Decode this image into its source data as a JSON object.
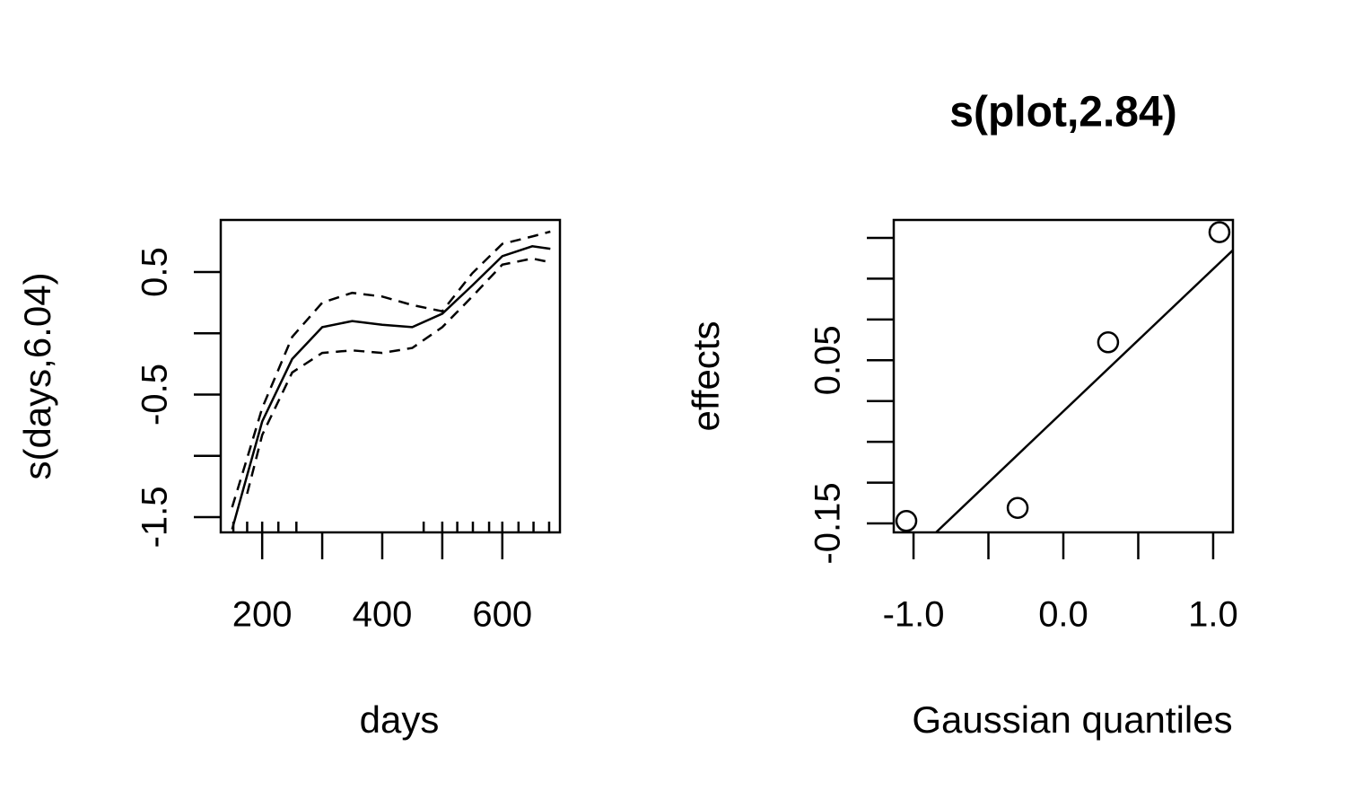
{
  "chart_data": [
    {
      "type": "line",
      "xlabel": "days",
      "ylabel": "s(days,6.04)",
      "xlim": [
        131,
        696
      ],
      "ylim": [
        -1.625,
        0.925
      ],
      "xticks": [
        200,
        {
          "value": 300,
          "label": null
        },
        400,
        {
          "value": 500,
          "label": null
        },
        600
      ],
      "yticks": [
        -1.5,
        {
          "value": -1,
          "label": null
        },
        -0.5,
        {
          "value": 0,
          "label": null
        },
        0.5
      ],
      "x": [
        150,
        175,
        200,
        250,
        300,
        350,
        400,
        450,
        500,
        550,
        600,
        650,
        680
      ],
      "series": [
        {
          "style": "solid",
          "color": "#000000",
          "values": [
            -1.6,
            -1.16,
            -0.72,
            -0.21,
            0.05,
            0.1,
            0.07,
            0.05,
            0.16,
            0.39,
            0.63,
            0.71,
            0.69
          ]
        },
        {
          "style": "dashed",
          "color": "#000000",
          "values": [
            -1.42,
            -1.02,
            -0.61,
            -0.03,
            0.25,
            0.33,
            0.3,
            0.23,
            0.18,
            0.49,
            0.73,
            0.79,
            0.83
          ]
        },
        {
          "style": "dashed",
          "color": "#000000",
          "values": [
            null,
            -1.31,
            -0.83,
            -0.32,
            -0.16,
            -0.14,
            -0.16,
            -0.12,
            0.05,
            0.3,
            0.56,
            0.61,
            0.58
          ]
        }
      ],
      "rug": [
        152,
        175,
        200,
        227,
        257,
        469,
        500,
        525,
        551,
        578,
        600,
        627,
        652,
        678
      ]
    },
    {
      "type": "scatter",
      "title": "s(plot,2.84)",
      "xlabel": "Gaussian quantiles",
      "ylabel": "effects",
      "xlim": [
        -1.132,
        1.132
      ],
      "ylim": [
        -0.161,
        0.222
      ],
      "xticks": [
        {
          "value": -1,
          "label": "-1.0"
        },
        {
          "value": -0.5,
          "label": null
        },
        {
          "value": 0,
          "label": "0.0"
        },
        {
          "value": 0.5,
          "label": null
        },
        {
          "value": 1,
          "label": "1.0"
        }
      ],
      "yticks": [
        -0.15,
        {
          "value": -0.1,
          "label": null
        },
        {
          "value": -0.05,
          "label": null
        },
        {
          "value": 0,
          "label": null
        },
        0.05,
        {
          "value": 0.1,
          "label": null
        },
        {
          "value": 0.15,
          "label": null
        },
        {
          "value": 0.2,
          "label": null
        }
      ],
      "x": [
        -1.048,
        -0.305,
        0.299,
        1.042
      ],
      "values": [
        -0.147,
        -0.131,
        0.072,
        0.207
      ],
      "color": "#000000",
      "fit_line": {
        "x": [
          -0.85,
          1.132
        ],
        "y": [
          -0.161,
          0.185
        ]
      }
    }
  ]
}
